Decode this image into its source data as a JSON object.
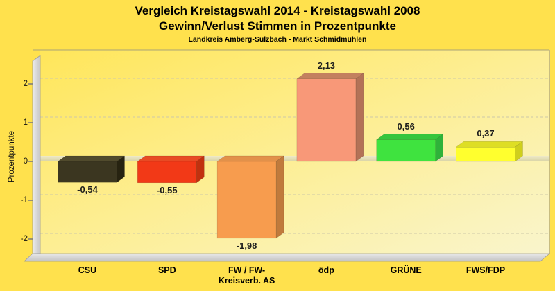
{
  "page": {
    "background_color": "#ffe14d"
  },
  "header": {
    "title_line1": "Vergleich Kreistagswahl 2014 - Kreistagswahl 2008",
    "title_line2": "Gewinn/Verlust Stimmen in Prozentpunkte",
    "subtitle": "Landkreis Amberg-Sulzbach - Markt Schmidmühlen"
  },
  "chart_data": {
    "type": "bar",
    "title": "Vergleich Kreistagswahl 2014 - Kreistagswahl 2008",
    "subtitle": "Gewinn/Verlust Stimmen in Prozentpunkte",
    "caption": "Landkreis Amberg-Sulzbach - Markt Schmidmühlen",
    "xlabel": "",
    "ylabel": "Prozentpunkte",
    "categories": [
      "CSU",
      "SPD",
      "FW / FW-Kreisverb. AS",
      "ödp",
      "GRÜNE",
      "FWS/FDP"
    ],
    "category_lines": [
      [
        "CSU"
      ],
      [
        "SPD"
      ],
      [
        "FW / FW-",
        "Kreisverb. AS"
      ],
      [
        "ödp"
      ],
      [
        "GRÜNE"
      ],
      [
        "FWS/FDP"
      ]
    ],
    "values": [
      -0.54,
      -0.55,
      -1.98,
      2.13,
      0.56,
      0.37
    ],
    "value_labels": [
      "-0,54",
      "-0,55",
      "-1,98",
      "2,13",
      "0,56",
      "0,37"
    ],
    "yticks": [
      2,
      1,
      0,
      -1,
      -2
    ],
    "ytick_labels": [
      "2",
      "1",
      "0",
      "-1",
      "-2"
    ],
    "ylim": [
      -2.4,
      2.9
    ],
    "grid": "horizontal dashed",
    "legend": "none",
    "style": "3d bars on yellow gradient background",
    "bar_colors": [
      {
        "party": "CSU",
        "front": "#3b3620",
        "top": "#514b2d",
        "side": "#272311"
      },
      {
        "party": "SPD",
        "front": "#f23917",
        "top": "#e84b24",
        "side": "#c1310f"
      },
      {
        "party": "FW / FW-Kreisverb. AS",
        "front": "#f79c4e",
        "top": "#e2914a",
        "side": "#c07a3c"
      },
      {
        "party": "ödp",
        "front": "#f89878",
        "top": "#c3805f",
        "side": "#b37257"
      },
      {
        "party": "GRÜNE",
        "front": "#3fe33f",
        "top": "#36c53d",
        "side": "#2fb23a"
      },
      {
        "party": "FWS/FDP",
        "front": "#ffff2e",
        "top": "#dede24",
        "side": "#cfcf1c"
      }
    ]
  }
}
